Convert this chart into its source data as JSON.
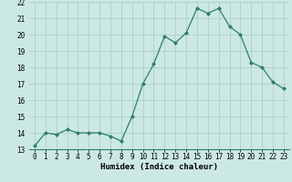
{
  "x": [
    0,
    1,
    2,
    3,
    4,
    5,
    6,
    7,
    8,
    9,
    10,
    11,
    12,
    13,
    14,
    15,
    16,
    17,
    18,
    19,
    20,
    21,
    22,
    23
  ],
  "y": [
    13.2,
    14.0,
    13.9,
    14.2,
    14.0,
    14.0,
    14.0,
    13.8,
    13.5,
    15.0,
    17.0,
    18.2,
    19.9,
    19.5,
    20.1,
    21.6,
    21.3,
    21.6,
    20.5,
    20.0,
    18.3,
    18.0,
    17.1,
    16.7
  ],
  "xlabel": "Humidex (Indice chaleur)",
  "ylim": [
    13,
    22
  ],
  "yticks": [
    13,
    14,
    15,
    16,
    17,
    18,
    19,
    20,
    21,
    22
  ],
  "xticks": [
    0,
    1,
    2,
    3,
    4,
    5,
    6,
    7,
    8,
    9,
    10,
    11,
    12,
    13,
    14,
    15,
    16,
    17,
    18,
    19,
    20,
    21,
    22,
    23
  ],
  "line_color": "#2e7d6e",
  "marker_color": "#2e7d6e",
  "bg_color": "#cce8e4",
  "grid_color": "#aacfca",
  "tick_label_fontsize": 5.5,
  "xlabel_fontsize": 6.5,
  "xlabel_fontweight": "bold"
}
